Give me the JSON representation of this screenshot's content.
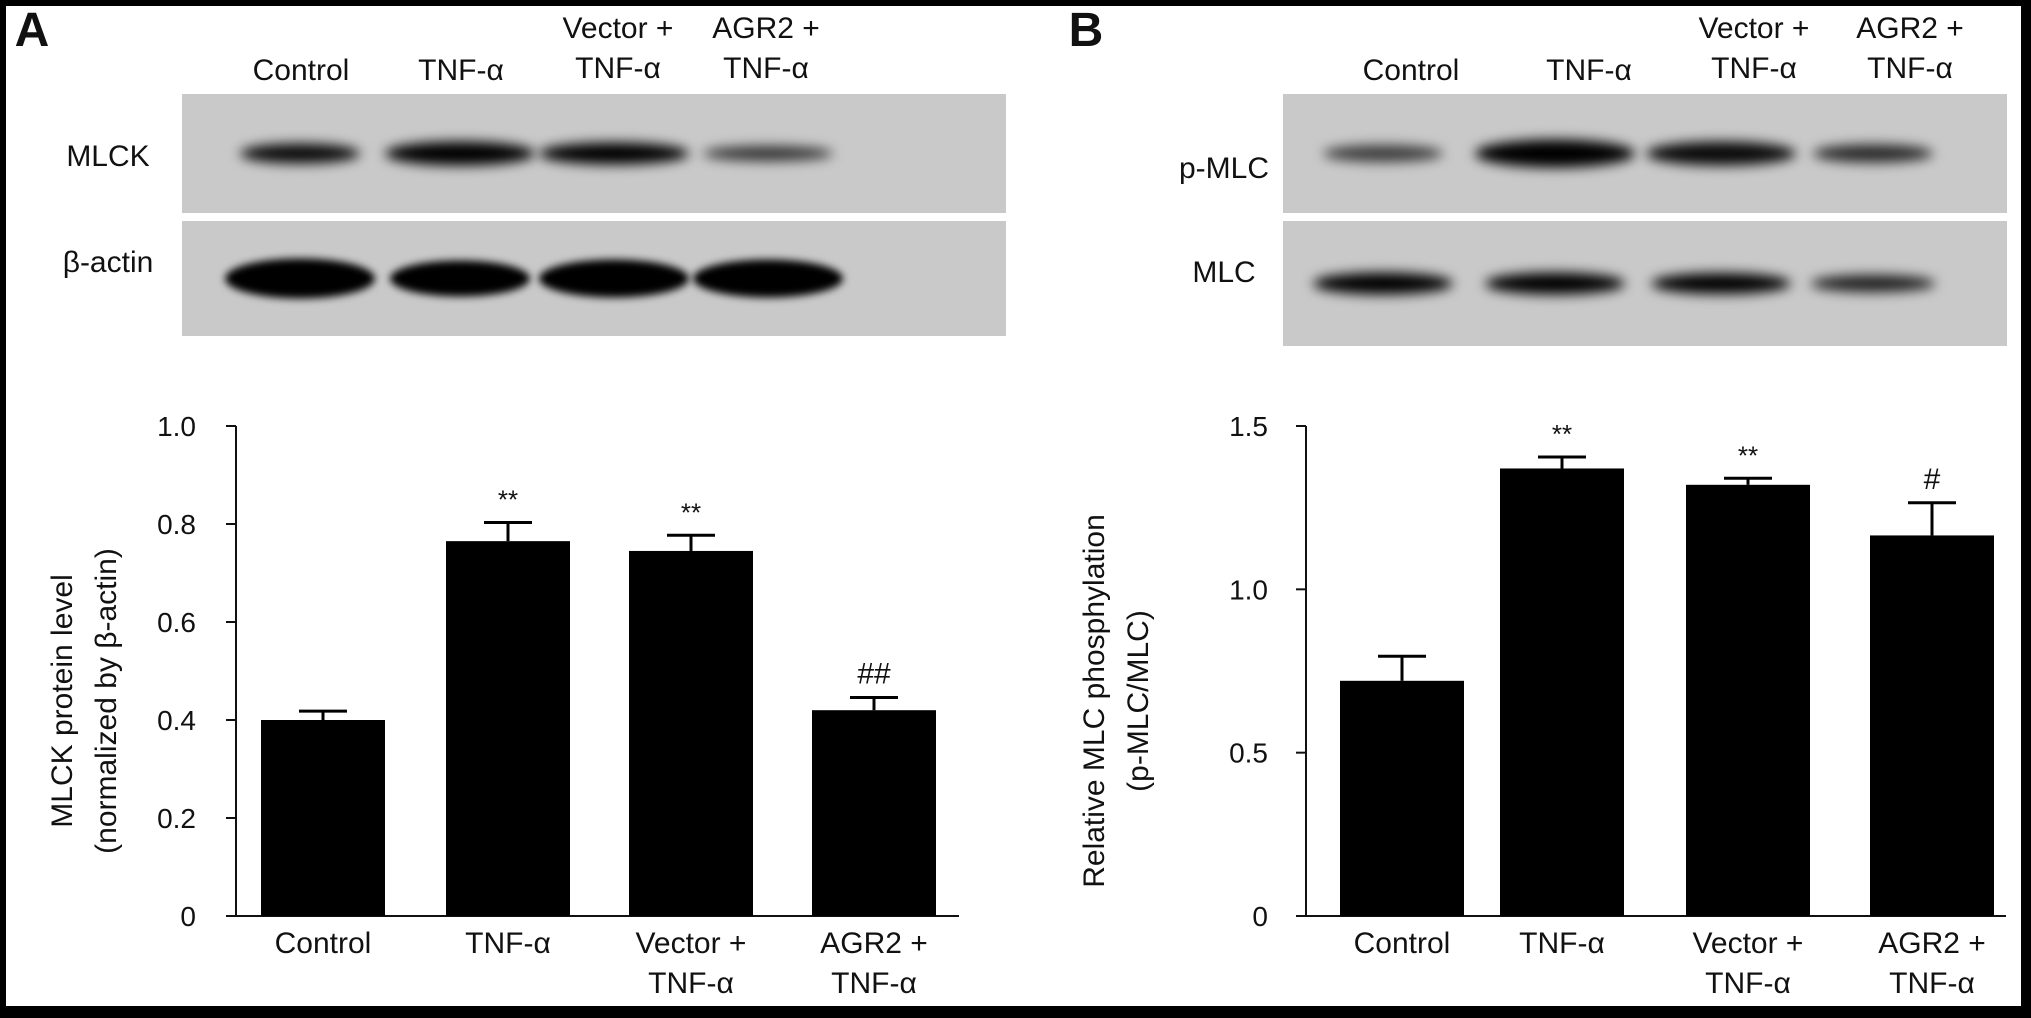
{
  "panels": [
    {
      "letter": "A",
      "blot": {
        "lanes": [
          "Control",
          "TNF-α",
          [
            "Vector +",
            "TNF-α"
          ],
          [
            "AGR2 +",
            "TNF-α"
          ]
        ],
        "rows": [
          "MLCK",
          "β-actin"
        ]
      }
    },
    {
      "letter": "B",
      "blot": {
        "lanes": [
          "Control",
          "TNF-α",
          [
            "Vector +",
            "TNF-α"
          ],
          [
            "AGR2 +",
            "TNF-α"
          ]
        ],
        "rows": [
          "p-MLC",
          "MLC"
        ]
      }
    }
  ],
  "chart_data": [
    {
      "type": "bar",
      "categories": [
        "Control",
        "TNF-α",
        [
          "Vector +",
          "TNF-α"
        ],
        [
          "AGR2 +",
          "TNF-α"
        ]
      ],
      "values": [
        0.4,
        0.765,
        0.745,
        0.42
      ],
      "errors": [
        0.018,
        0.038,
        0.032,
        0.026
      ],
      "annotations": [
        "",
        "**",
        "**",
        "##"
      ],
      "ylabel": [
        "MLCK protein level",
        "(normalized by β-actin)"
      ],
      "ylim": [
        0,
        1.0
      ],
      "yticks": [
        "0",
        "0.2",
        "0.4",
        "0.6",
        "0.8",
        "1.0"
      ],
      "ytick_values": [
        0,
        0.2,
        0.4,
        0.6,
        0.8,
        1.0
      ],
      "bar_color": "#000000"
    },
    {
      "type": "bar",
      "categories": [
        "Control",
        "TNF-α",
        [
          "Vector +",
          "TNF-α"
        ],
        [
          "AGR2 +",
          "TNF-α"
        ]
      ],
      "values": [
        0.72,
        1.37,
        1.32,
        1.165
      ],
      "errors": [
        0.075,
        0.035,
        0.02,
        0.1
      ],
      "annotations": [
        "",
        "**",
        "**",
        "#"
      ],
      "ylabel": [
        "Relative MLC phosphylation",
        "(p-MLC/MLC)"
      ],
      "ylim": [
        0,
        1.5
      ],
      "yticks": [
        "0",
        "0.5",
        "1.0",
        "1.5"
      ],
      "ytick_values": [
        0,
        0.5,
        1.0,
        1.5
      ],
      "bar_color": "#000000"
    }
  ]
}
